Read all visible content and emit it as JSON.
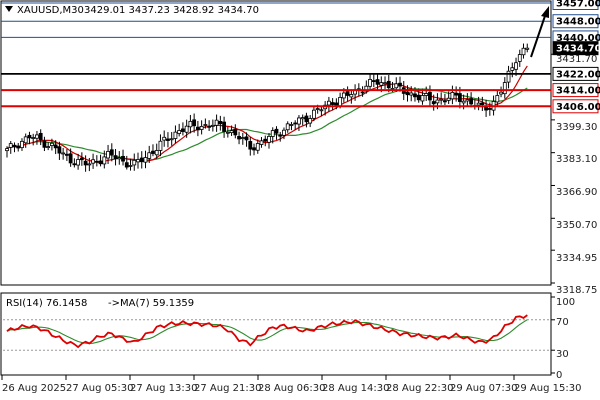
{
  "header": {
    "symbol": "XAUUSD,M30",
    "ohlc": "3429.01 3437.23 3428.92 3434.70"
  },
  "rsi_header": {
    "rsi_label": "RSI(14) 76.1458",
    "ma_label": "->MA(7) 59.1359"
  },
  "price_axis": {
    "ticks": [
      "3431.70",
      "3399.30",
      "3383.10",
      "3366.90",
      "3350.70",
      "3334.95",
      "3318.75"
    ]
  },
  "rsi_axis": {
    "ticks": [
      "100",
      "70",
      "30",
      "0"
    ]
  },
  "time_axis": {
    "ticks": [
      "26 Aug 2025",
      "27 Aug 05:30",
      "27 Aug 13:30",
      "27 Aug 21:30",
      "28 Aug 06:30",
      "28 Aug 14:30",
      "28 Aug 22:30",
      "29 Aug 07:30",
      "29 Aug 15:30"
    ]
  },
  "levels": [
    {
      "label": "3457.00",
      "kind": "resistance"
    },
    {
      "label": "3448.00",
      "kind": "resistance"
    },
    {
      "label": "3440.00",
      "kind": "resistance"
    },
    {
      "label": "3434.70",
      "kind": "current"
    },
    {
      "label": "3422.00",
      "kind": "pivot"
    },
    {
      "label": "3414.00",
      "kind": "support"
    },
    {
      "label": "3406.00",
      "kind": "support"
    }
  ],
  "colors": {
    "bull": "#ffffff",
    "bear": "#000000",
    "ma_fast": "#cc0000",
    "ma_slow": "#2e8b2e",
    "rsi": "#dd0000",
    "rsi_ma": "#2e8b2e",
    "resistance": "#1f4e8c",
    "pivot": "#000000",
    "support": "#dd0000",
    "arrow": "#000000"
  },
  "chart_data": [
    {
      "type": "candlestick",
      "symbol": "XAUUSD",
      "timeframe": "M30",
      "ylim": [
        3318.75,
        3457.0
      ],
      "x_start": "26 Aug 2025",
      "x_end": "29 Aug 15:30",
      "close_path": [
        3384.0,
        3388.0,
        3391.0,
        3389.0,
        3386.0,
        3381.0,
        3379.0,
        3377.0,
        3380.0,
        3382.0,
        3379.0,
        3377.0,
        3381.0,
        3386.0,
        3390.0,
        3395.0,
        3396.0,
        3396.5,
        3397.0,
        3395.0,
        3391.0,
        3386.0,
        3388.0,
        3392.0,
        3395.0,
        3398.0,
        3401.0,
        3404.0,
        3408.0,
        3410.0,
        3413.0,
        3416.0,
        3418.0,
        3417.0,
        3414.0,
        3412.0,
        3410.0,
        3409.0,
        3409.5,
        3411.0,
        3408.0,
        3405.0,
        3407.0,
        3416.0,
        3430.0,
        3434.7
      ],
      "moving_averages": [
        "fast (red)",
        "slow (green)"
      ]
    },
    {
      "type": "line",
      "indicator": "RSI(14)",
      "value": 76.1458,
      "ma_period": 7,
      "ma_value": 59.1359,
      "ylim": [
        0,
        100
      ],
      "levels": [
        70,
        30
      ],
      "series_path": [
        55,
        60,
        62,
        58,
        50,
        42,
        36,
        40,
        48,
        52,
        45,
        40,
        50,
        60,
        64,
        66,
        65,
        64,
        63,
        58,
        45,
        38,
        50,
        60,
        62,
        58,
        55,
        60,
        64,
        66,
        68,
        64,
        60,
        56,
        52,
        50,
        48,
        46,
        47,
        50,
        44,
        40,
        45,
        60,
        72,
        76.1458
      ]
    }
  ]
}
